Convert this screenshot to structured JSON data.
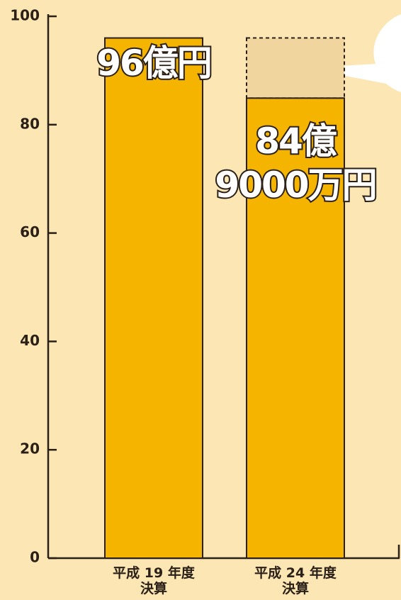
{
  "chart_data": {
    "type": "bar",
    "categories": [
      "平成 19 年度\n決算",
      "平成 24 年度\n決算"
    ],
    "values": [
      96,
      84.9
    ],
    "value_labels": [
      "96億円",
      "84億\n9000万円"
    ],
    "color": "#f5b400",
    "ylim": [
      0,
      100
    ],
    "yticks": [
      0,
      20,
      40,
      60,
      80,
      100
    ]
  }
}
